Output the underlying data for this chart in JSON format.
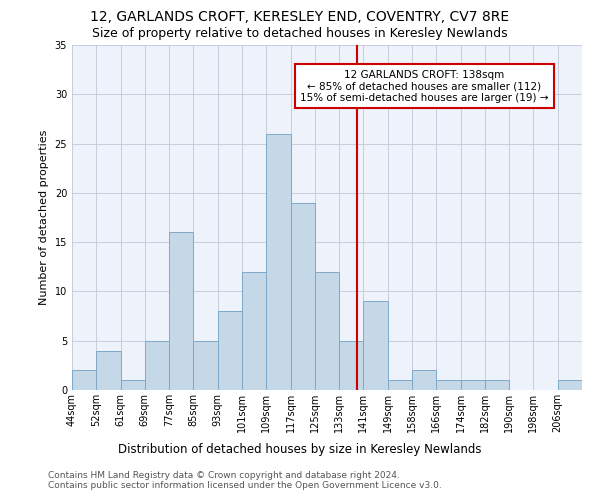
{
  "title": "12, GARLANDS CROFT, KERESLEY END, COVENTRY, CV7 8RE",
  "subtitle": "Size of property relative to detached houses in Keresley Newlands",
  "xlabel": "Distribution of detached houses by size in Keresley Newlands",
  "ylabel": "Number of detached properties",
  "categories": [
    "44sqm",
    "52sqm",
    "61sqm",
    "69sqm",
    "77sqm",
    "85sqm",
    "93sqm",
    "101sqm",
    "109sqm",
    "117sqm",
    "125sqm",
    "133sqm",
    "141sqm",
    "149sqm",
    "158sqm",
    "166sqm",
    "174sqm",
    "182sqm",
    "190sqm",
    "198sqm",
    "206sqm"
  ],
  "values": [
    2,
    4,
    1,
    5,
    16,
    5,
    8,
    12,
    26,
    19,
    12,
    5,
    9,
    1,
    2,
    1,
    1,
    1,
    0,
    0,
    1
  ],
  "bar_color": "#c5d8e8",
  "bar_edge_color": "#7fa8c9",
  "bar_edge_width": 0.7,
  "vline_x_index": 11.75,
  "vline_color": "#cc0000",
  "annotation_line1": "12 GARLANDS CROFT: 138sqm",
  "annotation_line2": "← 85% of detached houses are smaller (112)",
  "annotation_line3": "15% of semi-detached houses are larger (19) →",
  "annotation_box_color": "#cc0000",
  "ylim": [
    0,
    35
  ],
  "yticks": [
    0,
    5,
    10,
    15,
    20,
    25,
    30,
    35
  ],
  "grid_color": "#c0c8d8",
  "background_color": "#eef2fa",
  "footer_line1": "Contains HM Land Registry data © Crown copyright and database right 2024.",
  "footer_line2": "Contains public sector information licensed under the Open Government Licence v3.0.",
  "bin_width": 1,
  "title_fontsize": 10,
  "subtitle_fontsize": 9,
  "xlabel_fontsize": 8.5,
  "ylabel_fontsize": 8,
  "tick_fontsize": 7,
  "footer_fontsize": 6.5,
  "annotation_fontsize": 7.5
}
